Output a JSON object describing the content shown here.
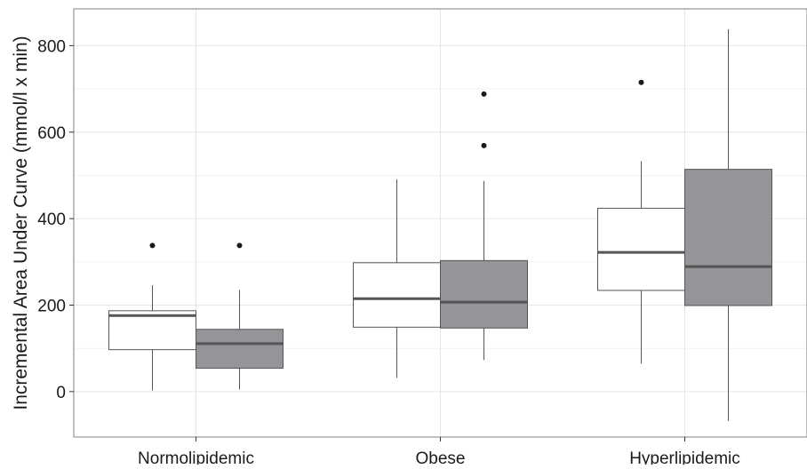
{
  "chart_data": {
    "type": "box",
    "ylabel": "Incremental Area Under Curve (mmol/l x min)",
    "xlabel": "",
    "ylim": [
      -105,
      885
    ],
    "yticks": [
      0,
      200,
      400,
      600,
      800
    ],
    "categories": [
      "Normolipidemic",
      "Obese",
      "Hyperlipidemic"
    ],
    "grid": true,
    "legend": "none",
    "series": [
      {
        "fill": "#ffffff",
        "boxes": [
          {
            "whisker_low": 3,
            "q1": 97,
            "median": 176,
            "q3": 187,
            "whisker_high": 246,
            "outliers": [
              338
            ]
          },
          {
            "whisker_low": 32,
            "q1": 149,
            "median": 215,
            "q3": 298,
            "whisker_high": 491,
            "outliers": []
          },
          {
            "whisker_low": 65,
            "q1": 234,
            "median": 322,
            "q3": 424,
            "whisker_high": 533,
            "outliers": [
              715
            ]
          }
        ]
      },
      {
        "fill": "#939598",
        "boxes": [
          {
            "whisker_low": 5,
            "q1": 54,
            "median": 111,
            "q3": 144,
            "whisker_high": 235,
            "outliers": [
              338
            ]
          },
          {
            "whisker_low": 73,
            "q1": 147,
            "median": 207,
            "q3": 303,
            "whisker_high": 487,
            "outliers": [
              569,
              688
            ]
          },
          {
            "whisker_low": -68,
            "q1": 199,
            "median": 289,
            "q3": 514,
            "whisker_high": 838,
            "outliers": []
          }
        ]
      }
    ]
  }
}
